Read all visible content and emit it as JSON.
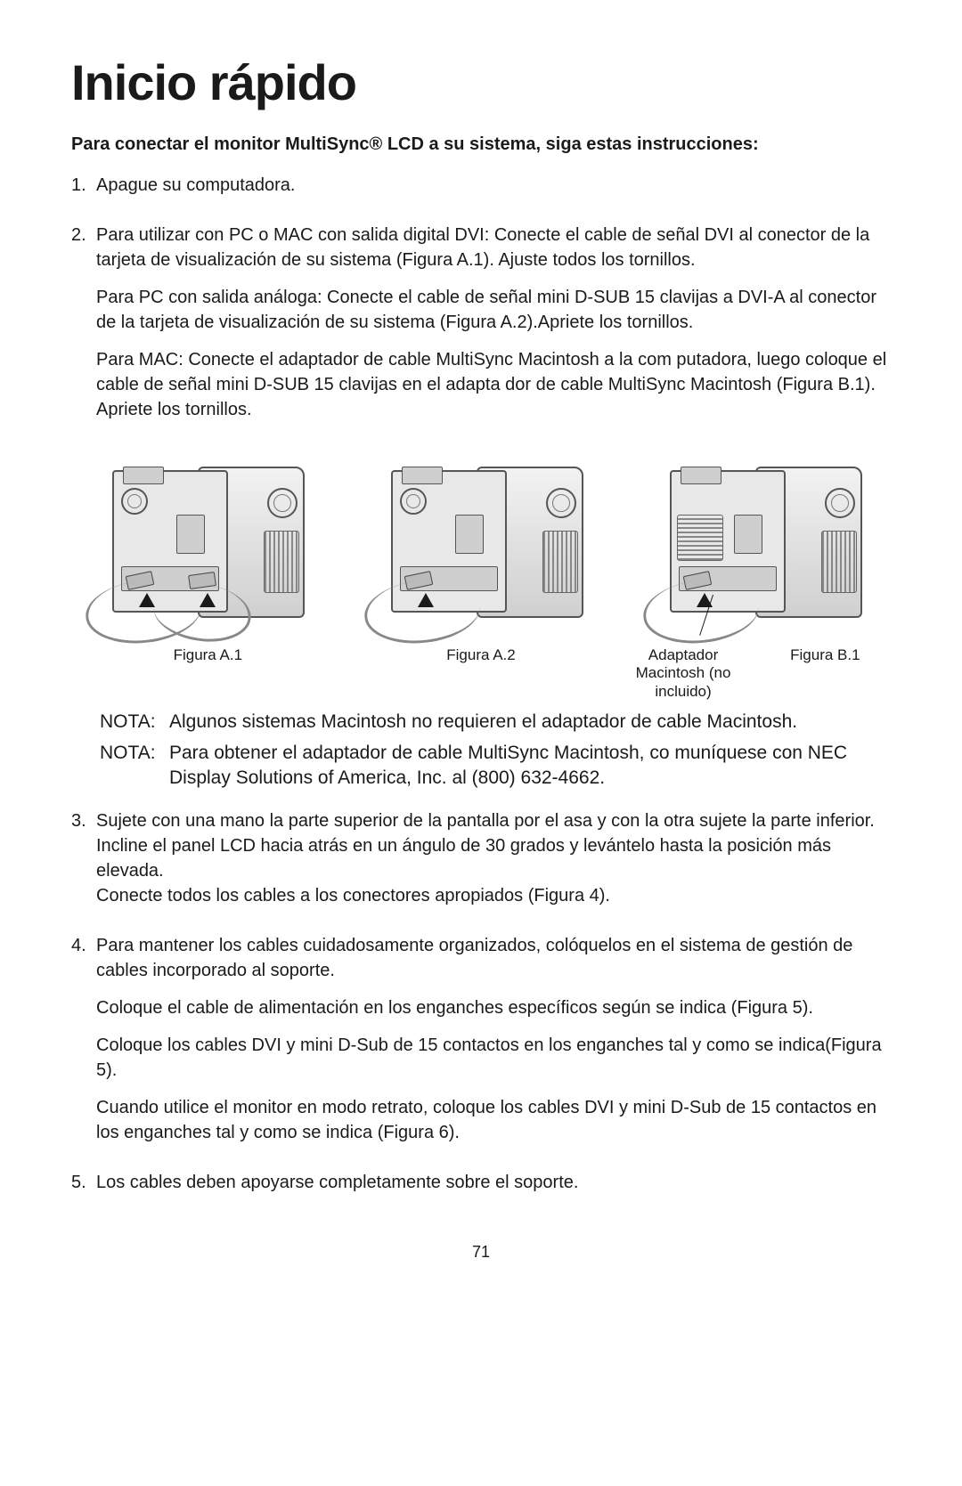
{
  "page_number": "71",
  "title": "Inicio rápido",
  "subtitle": "Para conectar el monitor MultiSync® LCD a su sistema, siga estas instruc­ciones:",
  "steps": {
    "n1": "1.",
    "s1": "Apague su computadora.",
    "n2": "2.",
    "s2a": "Para utilizar con PC o MAC con salida digital DVI: Conecte el cable de señal DVI al conector de la tarjeta de visualización de su sistema (Figura A.1). Ajuste todos los tornillos.",
    "s2b": "Para PC con salida análoga: Conecte el cable de señal mini D-SUB 15 clavijas a DVI-A al conector de la tarjeta de visualización de su sistema (Figura A.2).Apriete los tornillos.",
    "s2c": "Para MAC: Conecte el adaptador de cable MultiSync Macintosh a la com puta­dora, luego coloque el cable de señal mini D-SUB 15 clavijas en el adapta dor de cable MultiSync Macintosh (Figura B.1). Apriete los tornillos.",
    "n3": "3.",
    "s3a": "Sujete con una mano la parte superior de la pantalla por el asa y con la otra sujete la parte inferior. Incline el panel LCD hacia atrás en un ángulo de 30 grados y levántelo hasta la posición más elevada.",
    "s3b": "Conecte todos los cables a los conectores apropiados (Figura 4).",
    "n4": "4.",
    "s4a": "Para mantener los cables cuidadosamente organizados, colóquelos en el sistema de gestión de cables incorporado al soporte.",
    "s4b": "Coloque el cable de alimentación en los enganches específicos según se indica (Figura 5).",
    "s4c": "Coloque los cables DVI y mini D-Sub de 15 contactos en los enganches tal y como se indica(Figura 5).",
    "s4d": "Cuando utilice el monitor en modo retrato, coloque los cables DVI y mini D-Sub de 15 contactos en los enganches tal y como se indica (Figura 6).",
    "n5": "5.",
    "s5": "Los cables deben apoyarse completamente sobre el soporte."
  },
  "captions": {
    "a1": "Figura A.1",
    "a2": "Figura A.2",
    "b1_left": "Adaptador Macintosh (no incluido)",
    "b1_right": "Figura B.1"
  },
  "notes": {
    "label": "NOTA:",
    "n1": "Algunos sistemas Macintosh no requieren el adaptador de cable Macintosh.",
    "n2": "Para obtener el adaptador de cable MultiSync Macintosh, co muníquese con NEC Display Solutions of America, Inc. al (800) 632-4662."
  }
}
